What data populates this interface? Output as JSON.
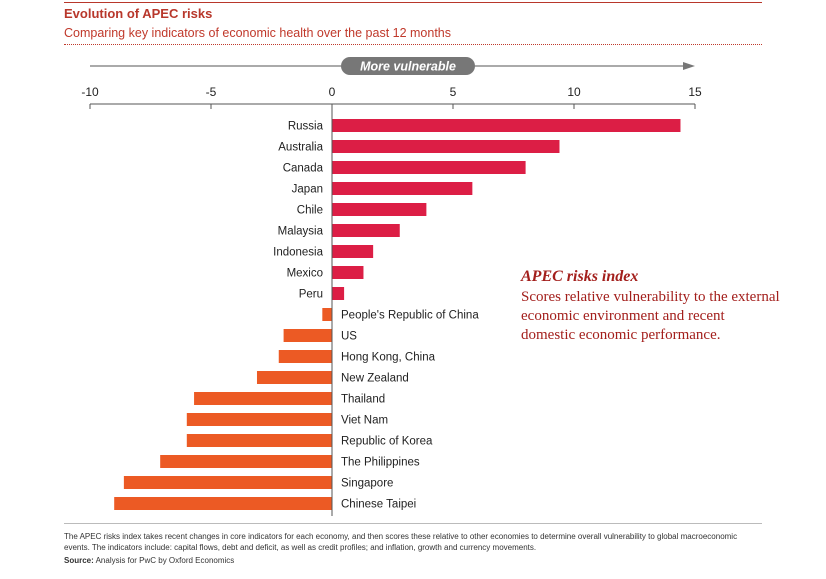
{
  "title": "Evolution of APEC risks",
  "subtitle": "Comparing key indicators of economic health over the past 12 months",
  "chart_data": {
    "type": "bar",
    "orientation": "horizontal",
    "axis_banner": "More vulnerable",
    "xlim": [
      -10,
      15
    ],
    "xticks": [
      "-10",
      "-5",
      "0",
      "5",
      "10",
      "15"
    ],
    "categories": [
      "Russia",
      "Australia",
      "Canada",
      "Japan",
      "Chile",
      "Malaysia",
      "Indonesia",
      "Mexico",
      "Peru",
      "People's Republic of China",
      "US",
      "Hong Kong, China",
      "New Zealand",
      "Thailand",
      "Viet Nam",
      "Republic of Korea",
      "The Philippines",
      "Singapore",
      "Chinese Taipei"
    ],
    "values": [
      14.4,
      9.4,
      8.0,
      5.8,
      3.9,
      2.8,
      1.7,
      1.3,
      0.5,
      -0.4,
      -2.0,
      -2.2,
      -3.1,
      -5.7,
      -6.0,
      -6.0,
      -7.1,
      -8.6,
      -9.0
    ],
    "colors": {
      "positive": "#dc1e45",
      "negative": "#ec5a24",
      "axis": "#555555"
    },
    "grid": false,
    "legend": "none"
  },
  "callout": {
    "title": "APEC risks index",
    "body": "Scores relative vulnerability to the external economic environment and recent domestic economic performance."
  },
  "footnote": "The APEC risks index takes recent changes in core indicators for each economy, and then scores these relative to other economies to determine overall vulnerability to global macroeconomic events. The indicators include: capital flows, debt and deficit, as well as credit profiles; and inflation, growth and currency movements.",
  "source": {
    "label": "Source:",
    "text": "Analysis for PwC by Oxford Economics"
  }
}
